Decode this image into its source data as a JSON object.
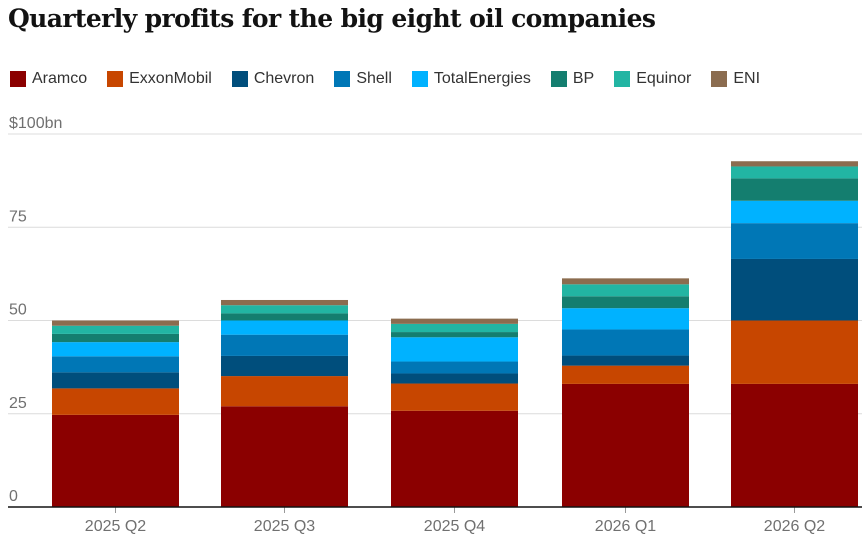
{
  "chart_data": {
    "type": "bar",
    "stacked": true,
    "title": "Quarterly profits for the big eight oil companies",
    "ylim": [
      0,
      100
    ],
    "yticks": [
      {
        "value": 0,
        "label": "0"
      },
      {
        "value": 25,
        "label": "25"
      },
      {
        "value": 50,
        "label": "50"
      },
      {
        "value": 75,
        "label": "75"
      },
      {
        "value": 100,
        "label": "$100bn"
      }
    ],
    "grid": true,
    "legend_position": "top",
    "categories": [
      "2025 Q2",
      "2025 Q3",
      "2025 Q4",
      "2026 Q1",
      "2026 Q2"
    ],
    "series": [
      {
        "name": "Aramco",
        "color": "#8b0000",
        "values": [
          24.7,
          27.0,
          25.8,
          33.0,
          33.0
        ]
      },
      {
        "name": "ExxonMobil",
        "color": "#c74600",
        "values": [
          7.1,
          8.1,
          7.3,
          4.9,
          17.0
        ]
      },
      {
        "name": "Chevron",
        "color": "#004e7c",
        "values": [
          4.3,
          5.4,
          2.7,
          2.7,
          16.5
        ]
      },
      {
        "name": "Shell",
        "color": "#0077b6",
        "values": [
          4.3,
          5.7,
          3.2,
          7.0,
          9.6
        ]
      },
      {
        "name": "TotalEnergies",
        "color": "#00b2ff",
        "values": [
          3.8,
          3.8,
          6.5,
          5.7,
          6.0
        ]
      },
      {
        "name": "BP",
        "color": "#147e6f",
        "values": [
          2.2,
          1.9,
          1.4,
          3.2,
          6.0
        ]
      },
      {
        "name": "Equinor",
        "color": "#22b5a3",
        "values": [
          2.2,
          2.2,
          2.2,
          3.2,
          3.2
        ]
      },
      {
        "name": "ENI",
        "color": "#8b6c4f",
        "values": [
          1.4,
          1.4,
          1.4,
          1.6,
          1.4
        ]
      }
    ]
  }
}
